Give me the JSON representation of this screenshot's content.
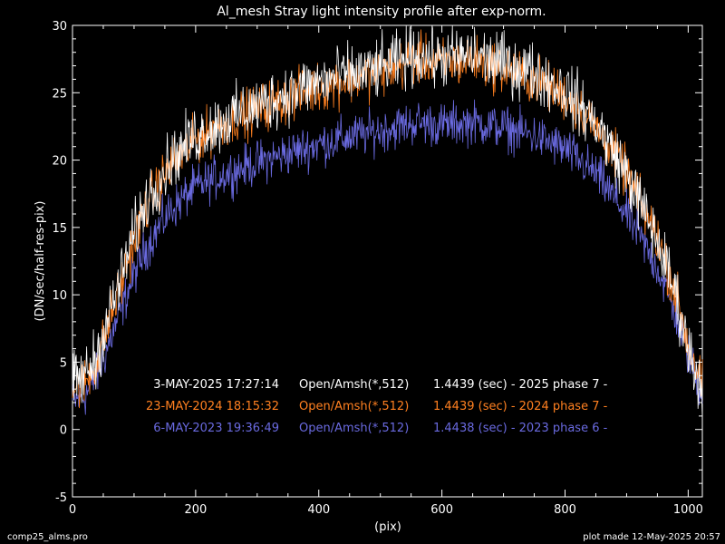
{
  "chart_data": {
    "type": "line",
    "title": "Al_mesh Stray light intensity profile after exp-norm.",
    "xlabel": "(pix)",
    "ylabel": "(DN/sec/half-res-pix)",
    "xlim": [
      0,
      1023
    ],
    "ylim": [
      -5,
      30
    ],
    "x_ticks": [
      0,
      200,
      400,
      600,
      800,
      1000
    ],
    "y_ticks": [
      -5,
      0,
      5,
      10,
      15,
      20,
      25,
      30
    ],
    "grid": false,
    "legend_placement": "bottom-center",
    "series": [
      {
        "name": "3-MAY-2025 17:27:14   Open/Amsh(*,512)   1.4439 (sec) - 2025 phase 7 -",
        "label_parts": [
          "3-MAY-2025 17:27:14",
          "Open/Amsh(*,512)",
          "1.4439 (sec) - 2025 phase 7 -"
        ],
        "color": "#ffffff",
        "noise": 1.1,
        "x": [
          0,
          20,
          40,
          60,
          80,
          100,
          120,
          140,
          160,
          200,
          250,
          300,
          350,
          400,
          450,
          500,
          540,
          560,
          600,
          650,
          700,
          750,
          800,
          850,
          900,
          950,
          980,
          1000,
          1023
        ],
        "y": [
          3.5,
          4.0,
          5.5,
          8.5,
          11.5,
          14.5,
          17.0,
          18.5,
          20.0,
          21.8,
          23.0,
          24.0,
          25.0,
          25.8,
          26.3,
          26.8,
          27.5,
          27.8,
          27.5,
          27.8,
          27.2,
          26.5,
          25.2,
          22.8,
          19.0,
          14.0,
          10.0,
          6.0,
          3.0
        ]
      },
      {
        "name": "23-MAY-2024 18:15:32   Open/Amsh(*,512)   1.4439 (sec) - 2024 phase 7 -",
        "label_parts": [
          "23-MAY-2024 18:15:32",
          "Open/Amsh(*,512)",
          "1.4439 (sec) - 2024 phase 7 -"
        ],
        "color": "#ff8020",
        "noise": 0.9,
        "x": [
          0,
          20,
          40,
          60,
          80,
          100,
          120,
          140,
          160,
          200,
          250,
          300,
          350,
          400,
          450,
          500,
          540,
          560,
          600,
          650,
          700,
          750,
          800,
          850,
          900,
          950,
          980,
          1000,
          1023
        ],
        "y": [
          3.0,
          3.5,
          5.0,
          8.0,
          11.0,
          14.0,
          16.5,
          18.2,
          19.6,
          21.5,
          22.8,
          23.8,
          24.6,
          25.4,
          26.0,
          26.5,
          27.2,
          27.5,
          27.2,
          27.4,
          26.8,
          26.0,
          24.8,
          22.5,
          19.0,
          14.2,
          10.2,
          6.2,
          3.2
        ]
      },
      {
        "name": "6-MAY-2023 19:36:49   Open/Amsh(*,512)   1.4438 (sec) - 2023 phase 6 -",
        "label_parts": [
          "6-MAY-2023 19:36:49",
          "Open/Amsh(*,512)",
          "1.4438 (sec) - 2023 phase 6 -"
        ],
        "color": "#6a6ae0",
        "noise": 0.8,
        "x": [
          0,
          20,
          40,
          60,
          80,
          100,
          120,
          140,
          160,
          200,
          250,
          300,
          350,
          400,
          450,
          500,
          540,
          560,
          600,
          650,
          700,
          750,
          800,
          850,
          900,
          950,
          980,
          1000,
          1023
        ],
        "y": [
          2.0,
          2.5,
          4.0,
          6.5,
          9.0,
          11.5,
          13.5,
          15.0,
          16.3,
          18.0,
          19.0,
          19.8,
          20.5,
          21.2,
          21.7,
          22.2,
          22.6,
          22.8,
          22.6,
          22.8,
          22.4,
          21.8,
          20.8,
          19.0,
          16.0,
          12.0,
          8.5,
          5.5,
          2.8
        ]
      }
    ]
  },
  "footer": {
    "left": "comp25_alms.pro",
    "right": "plot made 12-May-2025 20:57"
  }
}
